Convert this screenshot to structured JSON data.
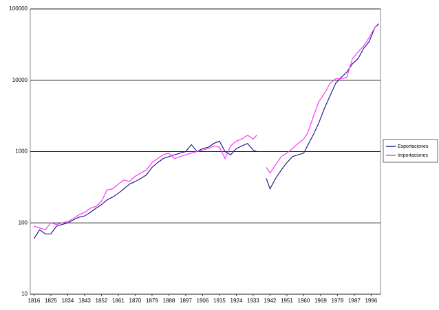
{
  "chart_data": {
    "type": "line",
    "x": [
      1816,
      1819,
      1822,
      1825,
      1828,
      1831,
      1834,
      1837,
      1840,
      1843,
      1846,
      1849,
      1852,
      1855,
      1858,
      1861,
      1864,
      1867,
      1870,
      1873,
      1876,
      1879,
      1882,
      1885,
      1888,
      1891,
      1894,
      1897,
      1900,
      1903,
      1906,
      1909,
      1912,
      1915,
      1918,
      1921,
      1924,
      1927,
      1930,
      1933,
      1935,
      1937,
      1940,
      1942,
      1945,
      1948,
      1951,
      1954,
      1957,
      1960,
      1962,
      1965,
      1968,
      1971,
      1974,
      1977,
      1980,
      1983,
      1986,
      1989,
      1992,
      1995,
      1998,
      2000
    ],
    "series": [
      {
        "name": "Exportaciones",
        "color": "#1f1f8f",
        "values": [
          60,
          80,
          70,
          70,
          90,
          95,
          100,
          110,
          120,
          125,
          140,
          160,
          180,
          210,
          230,
          260,
          300,
          350,
          380,
          420,
          470,
          600,
          700,
          800,
          850,
          900,
          950,
          1000,
          1250,
          1000,
          1100,
          1150,
          1300,
          1400,
          1000,
          900,
          1100,
          1200,
          1300,
          1050,
          1000,
          null,
          420,
          300,
          420,
          550,
          700,
          850,
          900,
          950,
          1200,
          1700,
          2500,
          4000,
          6000,
          9000,
          11000,
          13000,
          17000,
          20000,
          28000,
          35000,
          55000,
          62000
        ]
      },
      {
        "name": "Importaciones",
        "color": "#ff33ff",
        "values": [
          90,
          85,
          80,
          100,
          95,
          100,
          105,
          115,
          130,
          140,
          160,
          170,
          200,
          290,
          300,
          350,
          400,
          380,
          450,
          500,
          550,
          700,
          800,
          900,
          950,
          800,
          850,
          900,
          950,
          1000,
          1050,
          1100,
          1200,
          1150,
          800,
          1200,
          1400,
          1500,
          1700,
          1500,
          1700,
          null,
          600,
          500,
          650,
          850,
          950,
          1100,
          1300,
          1500,
          1800,
          3000,
          5000,
          6500,
          9000,
          10500,
          10500,
          11000,
          20000,
          25000,
          30000,
          40000,
          55000,
          60000
        ]
      }
    ],
    "xlim": [
      1814,
      2001
    ],
    "xticks": [
      1816,
      1825,
      1834,
      1843,
      1852,
      1861,
      1870,
      1879,
      1888,
      1897,
      1906,
      1915,
      1924,
      1933,
      1942,
      1951,
      1960,
      1969,
      1978,
      1987,
      1996
    ],
    "ylim": [
      10,
      100000
    ],
    "yticks": [
      10,
      100,
      1000,
      10000,
      100000
    ],
    "log_y": true,
    "grid": true,
    "legend": "right"
  }
}
